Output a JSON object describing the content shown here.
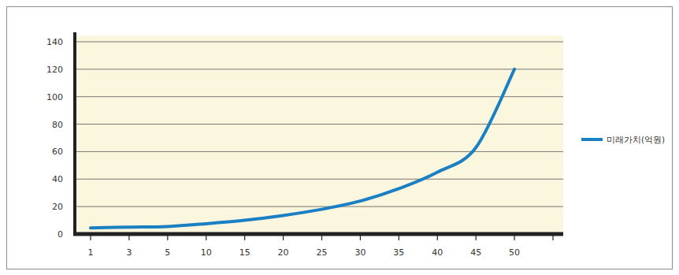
{
  "chart_data": {
    "type": "line",
    "categories": [
      "1",
      "3",
      "5",
      "10",
      "15",
      "20",
      "25",
      "30",
      "35",
      "40",
      "45",
      "50",
      null
    ],
    "series": [
      {
        "name": "미래가치(억원)",
        "color": "#1b7fc4",
        "values": [
          4.5,
          5,
          5.5,
          7.5,
          10,
          13.5,
          18,
          24,
          33,
          45,
          63,
          120,
          null
        ]
      }
    ],
    "ylim": [
      0,
      140
    ],
    "yticks": [
      0,
      20,
      40,
      60,
      80,
      100,
      120,
      140
    ],
    "grid": true,
    "legend": "right"
  }
}
